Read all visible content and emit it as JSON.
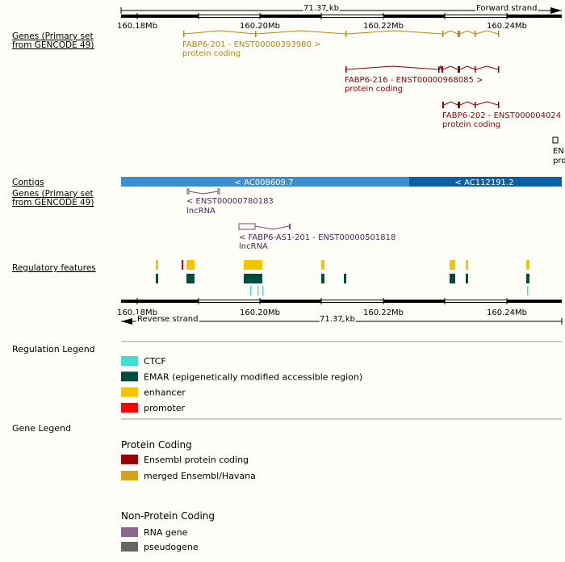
{
  "ruler_top": {
    "length": "71.37 kb",
    "strand": "Forward strand",
    "ticks": [
      "160.18Mb",
      "160.20Mb",
      "160.22Mb",
      "160.24Mb"
    ]
  },
  "genes_forward": {
    "label": [
      "Genes (Primary set",
      "from GENCODE 49)"
    ],
    "transcripts": [
      {
        "name": "FABP6-201 - ENST00000393980 >",
        "biotype": "protein coding"
      },
      {
        "name": "FABP6-216 - ENST00000968085 >",
        "biotype": "protein coding"
      },
      {
        "name": "FABP6-202 - ENST000004024",
        "biotype": "protein coding"
      },
      {
        "name": "EN",
        "biotype": "pro"
      }
    ]
  },
  "contigs": {
    "label": "Contigs",
    "items": [
      "< AC008609.7",
      "< AC112191.2"
    ]
  },
  "genes_reverse": {
    "label": [
      "Genes (Primary set",
      "from GENCODE 49)"
    ],
    "transcripts": [
      {
        "name": "< ENST00000780183",
        "biotype": "lncRNA"
      },
      {
        "name": "< FABP6-AS1-201 - ENST00000501818",
        "biotype": "lncRNA"
      }
    ]
  },
  "regulatory": {
    "label": "Regulatory features"
  },
  "ruler_bottom": {
    "length": "71.37 kb",
    "strand": "Reverse strand",
    "ticks": [
      "160.18Mb",
      "160.20Mb",
      "160.22Mb",
      "160.24Mb"
    ]
  },
  "regulation_legend": {
    "title": "Regulation Legend",
    "items": [
      "CTCF",
      "EMAR (epigenetically modified accessible region)",
      "enhancer",
      "promoter"
    ]
  },
  "gene_legend": {
    "title": "Gene Legend",
    "groups": [
      {
        "title": "Protein Coding",
        "items": [
          "Ensembl protein coding",
          "merged Ensembl/Havana"
        ]
      },
      {
        "title": "Non-Protein Coding",
        "items": [
          "RNA gene",
          "pseudogene"
        ]
      }
    ]
  }
}
